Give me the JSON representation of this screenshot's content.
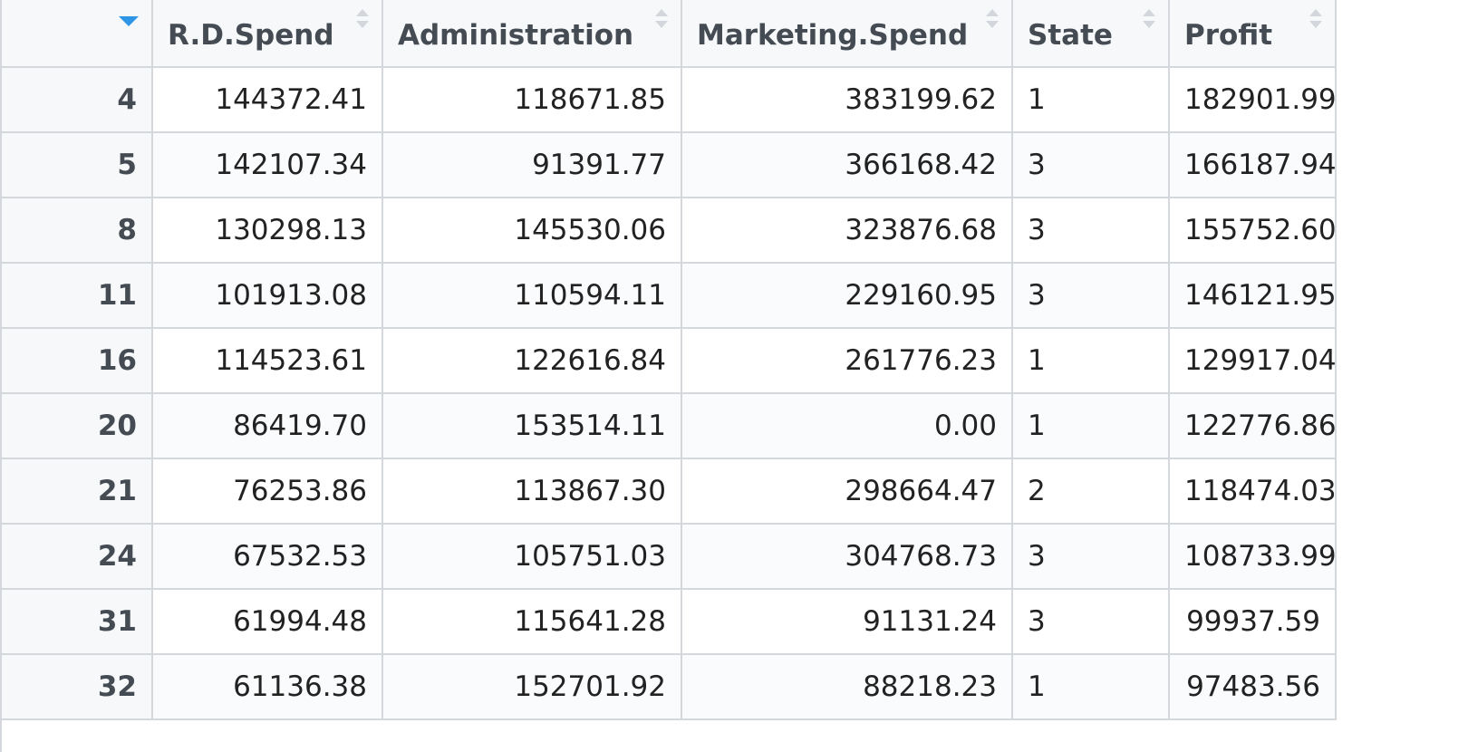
{
  "columns": [
    {
      "label": "",
      "align": "right",
      "sort": "desc"
    },
    {
      "label": "R.D.Spend",
      "align": "right"
    },
    {
      "label": "Administration",
      "align": "right"
    },
    {
      "label": "Marketing.Spend",
      "align": "right"
    },
    {
      "label": "State",
      "align": "left"
    },
    {
      "label": "Profit",
      "align": "right"
    }
  ],
  "rows": [
    [
      "4",
      "144372.41",
      "118671.85",
      "383199.62",
      "1",
      "182901.99"
    ],
    [
      "5",
      "142107.34",
      "91391.77",
      "366168.42",
      "3",
      "166187.94"
    ],
    [
      "8",
      "130298.13",
      "145530.06",
      "323876.68",
      "3",
      "155752.60"
    ],
    [
      "11",
      "101913.08",
      "110594.11",
      "229160.95",
      "3",
      "146121.95"
    ],
    [
      "16",
      "114523.61",
      "122616.84",
      "261776.23",
      "1",
      "129917.04"
    ],
    [
      "20",
      "86419.70",
      "153514.11",
      "0.00",
      "1",
      "122776.86"
    ],
    [
      "21",
      "76253.86",
      "113867.30",
      "298664.47",
      "2",
      "118474.03"
    ],
    [
      "24",
      "67532.53",
      "105751.03",
      "304768.73",
      "3",
      "108733.99"
    ],
    [
      "31",
      "61994.48",
      "115641.28",
      "91131.24",
      "3",
      "99937.59"
    ],
    [
      "32",
      "61136.38",
      "152701.92",
      "88218.23",
      "1",
      "97483.56"
    ]
  ],
  "colors": {
    "header_bg": "#f6f8fa",
    "border": "#d4d7db",
    "sort_active": "#2f95e6",
    "sort_inactive": "#d3d6da"
  },
  "icons": {
    "index_sort": "sort-descending-icon",
    "column_sort": "sort-both-icon"
  }
}
